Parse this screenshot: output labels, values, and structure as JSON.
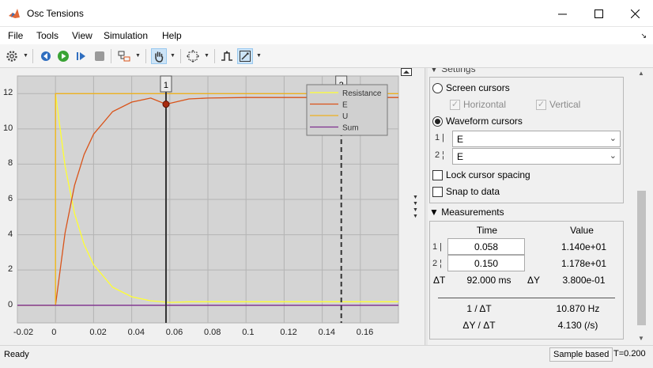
{
  "window": {
    "title": "Osc Tensions"
  },
  "menu": [
    "File",
    "Tools",
    "View",
    "Simulation",
    "Help"
  ],
  "plot": {
    "y_ticks": [
      "0",
      "2",
      "4",
      "6",
      "8",
      "10",
      "12"
    ],
    "x_ticks": [
      "-0.02",
      "0",
      "0.02",
      "0.04",
      "0.06",
      "0.08",
      "0.1",
      "0.12",
      "0.14",
      "0.16"
    ],
    "cursor1_label": "1",
    "cursor2_label": "2",
    "legend": [
      {
        "name": "Resistance",
        "color": "#ffff30"
      },
      {
        "name": "E",
        "color": "#d95319"
      },
      {
        "name": "U",
        "color": "#edb120"
      },
      {
        "name": "Sum",
        "color": "#7e2f8e"
      }
    ]
  },
  "chart_data": {
    "type": "line",
    "xlim": [
      -0.02,
      0.18
    ],
    "ylim": [
      -1,
      13
    ],
    "grid": true,
    "legend_position": "top-right",
    "series": [
      {
        "name": "Resistance",
        "color": "#ffff30",
        "x": [
          -0.02,
          0,
          0,
          0.005,
          0.01,
          0.015,
          0.02,
          0.03,
          0.04,
          0.05,
          0.06,
          0.07,
          0.08,
          0.1,
          0.12,
          0.14,
          0.16,
          0.18
        ],
        "y": [
          0,
          0,
          12,
          7.9,
          5.2,
          3.45,
          2.3,
          1.02,
          0.48,
          0.25,
          0.16,
          0.2,
          0.2,
          0.2,
          0.2,
          0.2,
          0.2,
          0.2
        ]
      },
      {
        "name": "E",
        "color": "#d95319",
        "x": [
          0,
          0.005,
          0.01,
          0.015,
          0.02,
          0.03,
          0.04,
          0.05,
          0.058,
          0.07,
          0.08,
          0.1,
          0.12,
          0.15,
          0.18
        ],
        "y": [
          0,
          4.1,
          6.8,
          8.55,
          9.7,
          10.98,
          11.52,
          11.75,
          11.4,
          11.7,
          11.75,
          11.78,
          11.78,
          11.78,
          11.78
        ]
      },
      {
        "name": "U",
        "color": "#edb120",
        "x": [
          -0.02,
          0,
          0,
          0.18
        ],
        "y": [
          0,
          0,
          12,
          12
        ]
      },
      {
        "name": "Sum",
        "color": "#7e2f8e",
        "x": [
          -0.02,
          0,
          0,
          0.18
        ],
        "y": [
          0,
          0,
          0,
          0
        ]
      }
    ],
    "cursors": [
      {
        "label": "1",
        "x": 0.058,
        "style": "solid"
      },
      {
        "label": "2",
        "x": 0.15,
        "style": "dashed"
      }
    ],
    "marker": {
      "x": 0.058,
      "y": 11.4
    }
  },
  "panel": {
    "settings_title": "Settings",
    "screen_cursors": "Screen cursors",
    "horizontal": "Horizontal",
    "vertical": "Vertical",
    "waveform_cursors": "Waveform cursors",
    "cursor1_row": "1 |",
    "cursor2_row": "2 ¦",
    "cursor1_signal": "E",
    "cursor2_signal": "E",
    "lock_spacing": "Lock cursor spacing",
    "snap_to_data": "Snap to data",
    "measurements_title": "Measurements",
    "col_time": "Time",
    "col_value": "Value",
    "row1_label": "1 |",
    "row2_label": "2 ¦",
    "row1_time": "0.058",
    "row2_time": "0.150",
    "row1_value": "1.140e+01",
    "row2_value": "1.178e+01",
    "dt_label": "ΔT",
    "dt_value": "92.000 ms",
    "dy_label": "ΔY",
    "dy_value": "3.800e-01",
    "inv_dt_label": "1 / ΔT",
    "inv_dt_value": "10.870 Hz",
    "dy_dt_label": "ΔY / ΔT",
    "dy_dt_value": "4.130 (/s)"
  },
  "status": {
    "ready": "Ready",
    "mode": "Sample based",
    "time": "T=0.200"
  }
}
